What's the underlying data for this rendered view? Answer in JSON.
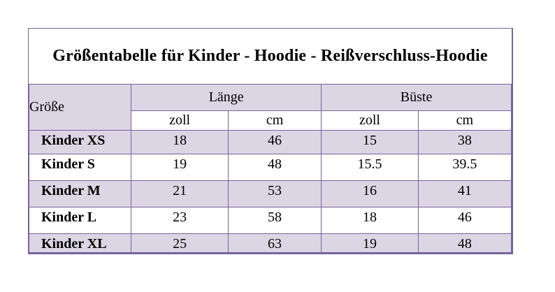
{
  "colors": {
    "border": "#75649a",
    "row_shade": "#dcd5e4",
    "row_plain": "#ffffff",
    "text": "#000000",
    "page_background": "#ffffff"
  },
  "title": "Größentabelle für Kinder - Hoodie - Reißverschluss-Hoodie",
  "table": {
    "corner_header": "Größe",
    "groups": [
      {
        "label": "Länge"
      },
      {
        "label": "Büste"
      }
    ],
    "unit_headers": [
      "zoll",
      "cm",
      "zoll",
      "cm"
    ],
    "rows": [
      {
        "label": "Kinder XS",
        "cells": [
          "18",
          "46",
          "15",
          "38"
        ]
      },
      {
        "label": "Kinder S",
        "cells": [
          "19",
          "48",
          "15.5",
          "39.5"
        ]
      },
      {
        "label": "Kinder M",
        "cells": [
          "21",
          "53",
          "16",
          "41"
        ]
      },
      {
        "label": "Kinder L",
        "cells": [
          "23",
          "58",
          "18",
          "46"
        ]
      },
      {
        "label": "Kinder XL",
        "cells": [
          "25",
          "63",
          "19",
          "48"
        ]
      }
    ]
  },
  "chart_data": {
    "type": "table",
    "title": "Größentabelle für Kinder - Hoodie - Reißverschluss-Hoodie",
    "column_groups": [
      "Größe",
      "Länge",
      "Länge",
      "Büste",
      "Büste"
    ],
    "columns": [
      "Größe",
      "Länge zoll",
      "Länge cm",
      "Büste zoll",
      "Büste cm"
    ],
    "rows": [
      [
        "Kinder XS",
        18,
        46,
        15,
        38
      ],
      [
        "Kinder S",
        19,
        48,
        15.5,
        39.5
      ],
      [
        "Kinder M",
        21,
        53,
        16,
        41
      ],
      [
        "Kinder L",
        23,
        58,
        18,
        46
      ],
      [
        "Kinder XL",
        25,
        63,
        19,
        48
      ]
    ],
    "units": [
      "zoll",
      "cm"
    ]
  }
}
